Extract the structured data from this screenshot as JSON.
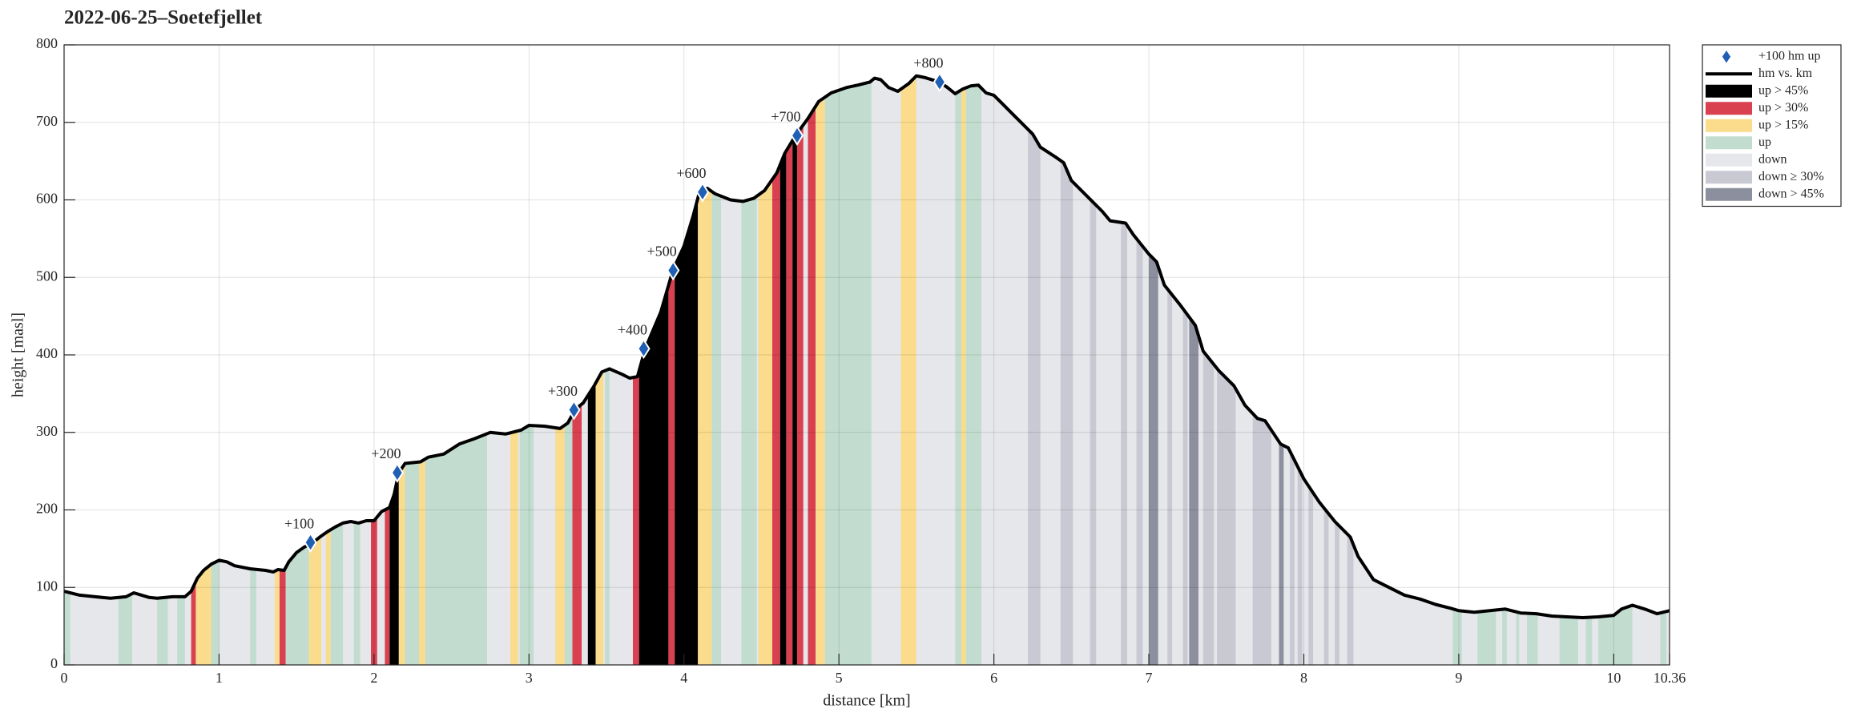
{
  "chart_data": {
    "type": "area",
    "title": "2022-06-25–Soetefjellet",
    "xlabel": "distance [km]",
    "ylabel": "height [masl]",
    "xlim": [
      0,
      10.36
    ],
    "ylim": [
      0,
      800
    ],
    "xticks": [
      0,
      1,
      2,
      3,
      4,
      5,
      6,
      7,
      8,
      9,
      10,
      10.36
    ],
    "yticks": [
      0,
      100,
      200,
      300,
      400,
      500,
      600,
      700,
      800
    ],
    "grid": true,
    "legend": "outside-right",
    "profile": {
      "name": "hm vs. km",
      "color": "#000000",
      "x": [
        0,
        0.1,
        0.2,
        0.3,
        0.4,
        0.45,
        0.5,
        0.55,
        0.6,
        0.7,
        0.78,
        0.82,
        0.86,
        0.9,
        0.95,
        1.0,
        1.05,
        1.1,
        1.2,
        1.3,
        1.35,
        1.38,
        1.42,
        1.45,
        1.5,
        1.55,
        1.6,
        1.65,
        1.7,
        1.75,
        1.8,
        1.85,
        1.9,
        1.95,
        2.0,
        2.05,
        2.1,
        2.13,
        2.16,
        2.2,
        2.3,
        2.35,
        2.45,
        2.55,
        2.65,
        2.75,
        2.85,
        2.95,
        3.0,
        3.1,
        3.2,
        3.25,
        3.3,
        3.35,
        3.42,
        3.47,
        3.52,
        3.6,
        3.65,
        3.7,
        3.75,
        3.85,
        3.93,
        4.0,
        4.06,
        4.1,
        4.15,
        4.2,
        4.3,
        4.38,
        4.45,
        4.52,
        4.6,
        4.65,
        4.72,
        4.8,
        4.87,
        4.95,
        5.05,
        5.12,
        5.2,
        5.23,
        5.27,
        5.32,
        5.38,
        5.45,
        5.5,
        5.55,
        5.65,
        5.7,
        5.75,
        5.8,
        5.85,
        5.9,
        5.95,
        6.0,
        6.05,
        6.15,
        6.25,
        6.3,
        6.4,
        6.45,
        6.5,
        6.6,
        6.7,
        6.75,
        6.85,
        6.9,
        7.0,
        7.05,
        7.1,
        7.2,
        7.3,
        7.35,
        7.45,
        7.55,
        7.62,
        7.7,
        7.75,
        7.85,
        7.9,
        8.0,
        8.1,
        8.2,
        8.3,
        8.35,
        8.45,
        8.55,
        8.65,
        8.75,
        8.85,
        8.95,
        9.0,
        9.1,
        9.2,
        9.3,
        9.4,
        9.5,
        9.6,
        9.7,
        9.8,
        9.9,
        10.0,
        10.05,
        10.12,
        10.2,
        10.28,
        10.36
      ],
      "values": [
        95,
        90,
        88,
        86,
        88,
        93,
        90,
        87,
        86,
        88,
        88,
        95,
        112,
        122,
        130,
        135,
        133,
        128,
        124,
        122,
        120,
        123,
        122,
        133,
        145,
        152,
        157,
        165,
        172,
        178,
        183,
        185,
        183,
        186,
        186,
        198,
        203,
        220,
        248,
        260,
        262,
        268,
        272,
        285,
        292,
        300,
        298,
        303,
        309,
        308,
        305,
        312,
        330,
        338,
        360,
        378,
        382,
        375,
        370,
        372,
        408,
        455,
        510,
        540,
        580,
        610,
        615,
        608,
        600,
        598,
        602,
        612,
        635,
        660,
        683,
        705,
        727,
        738,
        745,
        748,
        752,
        757,
        755,
        745,
        740,
        750,
        760,
        758,
        752,
        745,
        737,
        743,
        747,
        748,
        738,
        735,
        725,
        705,
        685,
        668,
        655,
        648,
        625,
        605,
        585,
        573,
        570,
        555,
        530,
        520,
        490,
        465,
        438,
        405,
        380,
        360,
        335,
        318,
        315,
        285,
        280,
        240,
        210,
        185,
        165,
        140,
        110,
        100,
        90,
        85,
        78,
        73,
        70,
        68,
        70,
        72,
        67,
        66,
        63,
        62,
        61,
        62,
        64,
        72,
        77,
        72,
        66,
        70
      ]
    },
    "markers": {
      "name": "+100 hm up",
      "color": "#1f5fb4",
      "x": [
        1.59,
        2.15,
        3.29,
        3.74,
        3.93,
        4.12,
        4.73,
        5.65
      ],
      "values": [
        158,
        248,
        329,
        408,
        509,
        610,
        683,
        752
      ],
      "labels": [
        "+100",
        "+200",
        "+300",
        "+400",
        "+500",
        "+600",
        "+700",
        "+800"
      ]
    },
    "series": [
      {
        "name": "up > 45%",
        "color": "#000000",
        "segments": [
          [
            2.1,
            2.16
          ],
          [
            3.38,
            3.43
          ],
          [
            3.71,
            3.9
          ],
          [
            3.94,
            4.09
          ],
          [
            4.62,
            4.66
          ],
          [
            4.7,
            4.73
          ]
        ]
      },
      {
        "name": "up > 30%",
        "color": "#d94050",
        "segments": [
          [
            0.82,
            0.85
          ],
          [
            1.39,
            1.43
          ],
          [
            1.98,
            2.02
          ],
          [
            2.07,
            2.1
          ],
          [
            3.28,
            3.34
          ],
          [
            3.67,
            3.71
          ],
          [
            3.9,
            3.94
          ],
          [
            4.57,
            4.62
          ],
          [
            4.66,
            4.7
          ],
          [
            4.73,
            4.77
          ],
          [
            4.8,
            4.85
          ]
        ]
      },
      {
        "name": "up > 15%",
        "color": "#fadc8c",
        "segments": [
          [
            0.85,
            0.95
          ],
          [
            1.36,
            1.39
          ],
          [
            1.58,
            1.66
          ],
          [
            1.69,
            1.72
          ],
          [
            2.16,
            2.2
          ],
          [
            2.29,
            2.33
          ],
          [
            2.88,
            2.93
          ],
          [
            3.17,
            3.23
          ],
          [
            3.43,
            3.48
          ],
          [
            4.09,
            4.18
          ],
          [
            4.48,
            4.57
          ],
          [
            4.85,
            4.91
          ],
          [
            5.4,
            5.5
          ],
          [
            5.79,
            5.82
          ]
        ]
      },
      {
        "name": "up",
        "color": "#c2ddd0",
        "segments": [
          [
            0,
            0.04
          ],
          [
            0.35,
            0.44
          ],
          [
            0.6,
            0.67
          ],
          [
            0.73,
            0.78
          ],
          [
            0.95,
            1.0
          ],
          [
            1.2,
            1.24
          ],
          [
            1.43,
            1.58
          ],
          [
            1.72,
            1.8
          ],
          [
            1.87,
            1.91
          ],
          [
            2.2,
            2.29
          ],
          [
            2.33,
            2.73
          ],
          [
            2.94,
            3.03
          ],
          [
            3.23,
            3.28
          ],
          [
            3.49,
            3.52
          ],
          [
            4.18,
            4.24
          ],
          [
            4.37,
            4.47
          ],
          [
            4.91,
            5.21
          ],
          [
            5.75,
            5.79
          ],
          [
            5.82,
            5.92
          ],
          [
            8.96,
            9.02
          ],
          [
            9.12,
            9.24
          ],
          [
            9.28,
            9.31
          ],
          [
            9.37,
            9.39
          ],
          [
            9.44,
            9.51
          ],
          [
            9.65,
            9.77
          ],
          [
            9.82,
            9.86
          ],
          [
            9.9,
            10.12
          ],
          [
            10.3,
            10.34
          ]
        ]
      },
      {
        "name": "down",
        "color": "#e6e7ea",
        "segments": [
          [
            0.04,
            0.35
          ],
          [
            0.44,
            0.6
          ],
          [
            1.0,
            1.2
          ],
          [
            2.73,
            2.88
          ],
          [
            3.52,
            3.67
          ],
          [
            4.24,
            4.37
          ],
          [
            5.21,
            5.4
          ],
          [
            5.5,
            5.75
          ],
          [
            5.92,
            6.22
          ],
          [
            8.32,
            8.96
          ],
          [
            10.34,
            10.36
          ]
        ]
      },
      {
        "name": "down ≥ 30%",
        "color": "#c8c9d2",
        "segments": [
          [
            6.22,
            6.3
          ],
          [
            6.43,
            6.51
          ],
          [
            6.62,
            6.66
          ],
          [
            6.82,
            6.86
          ],
          [
            6.92,
            6.96
          ],
          [
            7.12,
            7.15
          ],
          [
            7.22,
            7.25
          ],
          [
            7.35,
            7.42
          ],
          [
            7.44,
            7.56
          ],
          [
            7.67,
            7.79
          ],
          [
            7.91,
            7.94
          ],
          [
            7.96,
            7.99
          ],
          [
            8.03,
            8.06
          ],
          [
            8.13,
            8.16
          ],
          [
            8.2,
            8.23
          ],
          [
            8.28,
            8.32
          ]
        ]
      },
      {
        "name": "down > 45%",
        "color": "#8c909e",
        "segments": [
          [
            7.0,
            7.06
          ],
          [
            7.26,
            7.32
          ],
          [
            7.84,
            7.87
          ]
        ]
      }
    ]
  }
}
